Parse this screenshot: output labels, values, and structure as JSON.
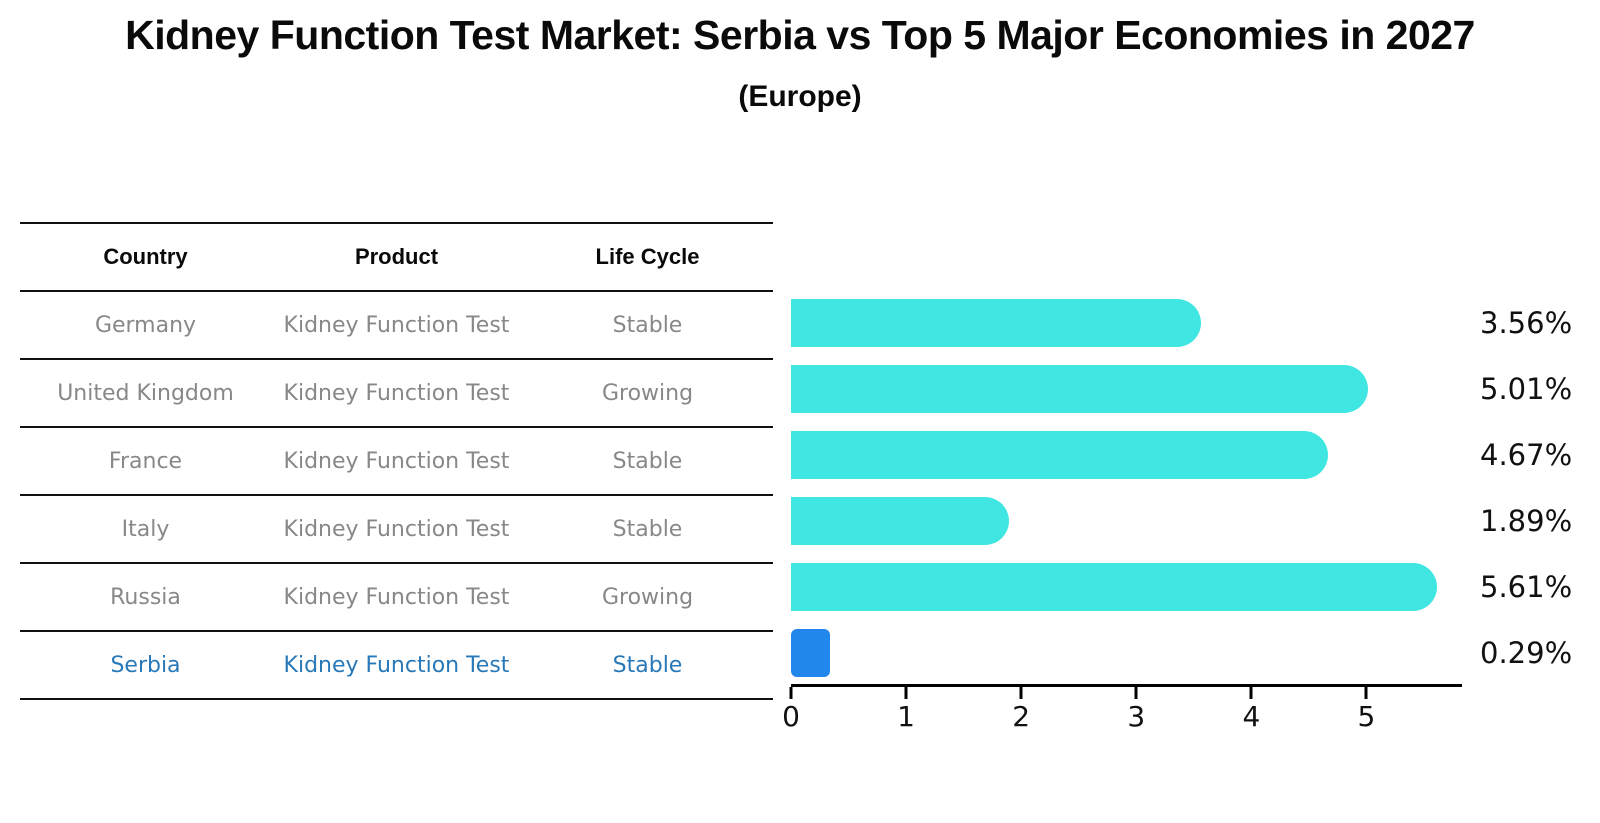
{
  "title": "Kidney Function Test Market: Serbia vs Top 5 Major Economies in 2027",
  "subtitle": "(Europe)",
  "table": {
    "headers": [
      "Country",
      "Product",
      "Life Cycle"
    ],
    "rows": [
      {
        "country": "Germany",
        "product": "Kidney Function Test",
        "life_cycle": "Stable",
        "highlight": false
      },
      {
        "country": "United Kingdom",
        "product": "Kidney Function Test",
        "life_cycle": "Growing",
        "highlight": false
      },
      {
        "country": "France",
        "product": "Kidney Function Test",
        "life_cycle": "Stable",
        "highlight": false
      },
      {
        "country": "Italy",
        "product": "Kidney Function Test",
        "life_cycle": "Stable",
        "highlight": false
      },
      {
        "country": "Russia",
        "product": "Kidney Function Test",
        "life_cycle": "Growing",
        "highlight": false
      },
      {
        "country": "Serbia",
        "product": "Kidney Function Test",
        "life_cycle": "Stable",
        "highlight": true
      }
    ]
  },
  "chart_data": {
    "type": "bar",
    "orientation": "horizontal",
    "title": "Kidney Function Test Market: Serbia vs Top 5 Major Economies in 2027 (Europe)",
    "categories": [
      "Germany",
      "United Kingdom",
      "France",
      "Italy",
      "Russia",
      "Serbia"
    ],
    "values": [
      3.56,
      5.01,
      4.67,
      1.89,
      5.61,
      0.29
    ],
    "value_labels": [
      "3.56%",
      "5.01%",
      "4.67%",
      "1.89%",
      "5.61%",
      "0.29%"
    ],
    "highlight_category": "Serbia",
    "xlabel": "",
    "ylabel": "",
    "xlim": [
      0,
      5.83
    ],
    "x_ticks": [
      0,
      1,
      2,
      3,
      4,
      5
    ],
    "grid": false,
    "legend": false,
    "bar_color": "#40e6e2",
    "highlight_bar_color": "#2187ec",
    "highlight_text_color": "#2979b8"
  }
}
